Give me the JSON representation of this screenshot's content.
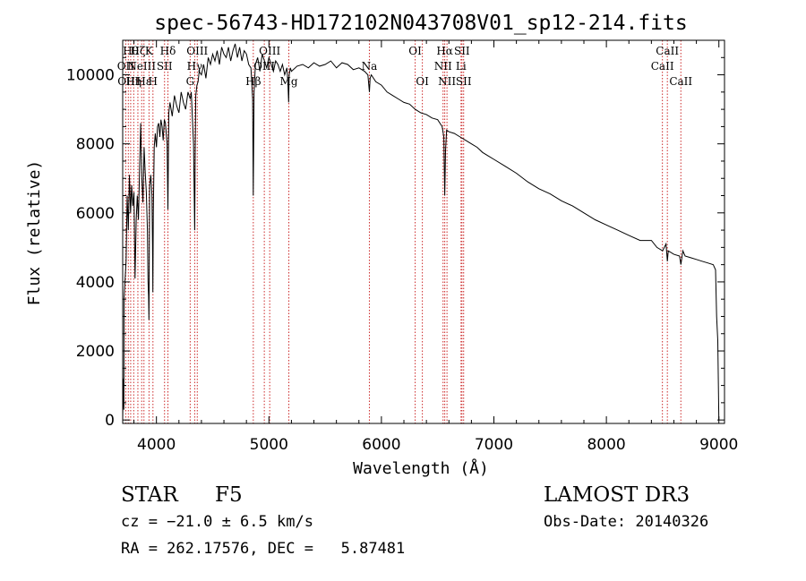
{
  "chart_data": {
    "type": "line",
    "title": "spec-56743-HD172102N043708V01_sp12-214.fits",
    "xlabel": "Wavelength (Å)",
    "ylabel": "Flux (relative)",
    "xlim": [
      3700,
      9050
    ],
    "ylim": [
      -100,
      11000
    ],
    "xticks": [
      4000,
      5000,
      6000,
      7000,
      8000,
      9000
    ],
    "yticks": [
      0,
      2000,
      4000,
      6000,
      8000,
      10000
    ],
    "grid": false,
    "series": [
      {
        "name": "spectrum",
        "x": [
          3700,
          3705,
          3710,
          3712,
          3720,
          3730,
          3740,
          3750,
          3760,
          3770,
          3780,
          3790,
          3800,
          3810,
          3820,
          3830,
          3840,
          3850,
          3860,
          3870,
          3880,
          3890,
          3900,
          3910,
          3920,
          3925,
          3930,
          3933,
          3936,
          3940,
          3950,
          3960,
          3965,
          3968,
          3972,
          3980,
          3990,
          4000,
          4010,
          4020,
          4030,
          4040,
          4050,
          4060,
          4070,
          4080,
          4095,
          4102,
          4110,
          4120,
          4140,
          4160,
          4180,
          4200,
          4220,
          4240,
          4260,
          4280,
          4300,
          4310,
          4320,
          4330,
          4340,
          4345,
          4350,
          4360,
          4370,
          4380,
          4400,
          4420,
          4440,
          4460,
          4480,
          4500,
          4520,
          4540,
          4560,
          4580,
          4600,
          4620,
          4640,
          4660,
          4680,
          4700,
          4720,
          4740,
          4760,
          4780,
          4800,
          4820,
          4840,
          4855,
          4861,
          4868,
          4880,
          4900,
          4920,
          4940,
          4960,
          4980,
          5000,
          5020,
          5040,
          5060,
          5080,
          5100,
          5120,
          5140,
          5160,
          5170,
          5175,
          5180,
          5190,
          5200,
          5250,
          5300,
          5350,
          5400,
          5450,
          5500,
          5550,
          5600,
          5650,
          5700,
          5750,
          5800,
          5850,
          5880,
          5893,
          5900,
          5910,
          5950,
          6000,
          6050,
          6100,
          6150,
          6200,
          6250,
          6300,
          6350,
          6400,
          6450,
          6500,
          6540,
          6555,
          6563,
          6570,
          6580,
          6600,
          6650,
          6700,
          6750,
          6800,
          6850,
          6900,
          6950,
          7000,
          7100,
          7200,
          7300,
          7400,
          7500,
          7600,
          7700,
          7800,
          7900,
          8000,
          8100,
          8200,
          8300,
          8400,
          8450,
          8500,
          8530,
          8542,
          8550,
          8600,
          8650,
          8662,
          8680,
          8700,
          8750,
          8800,
          8850,
          8900,
          8950,
          8970,
          8980,
          8990,
          9000
        ],
        "y": [
          0,
          1200,
          300,
          3500,
          4000,
          4600,
          6500,
          5500,
          7100,
          6000,
          6800,
          6200,
          6600,
          4100,
          5800,
          6500,
          5800,
          7200,
          8600,
          7000,
          6300,
          7900,
          7200,
          6600,
          5500,
          4000,
          3600,
          2900,
          4200,
          6800,
          7100,
          6500,
          5100,
          3700,
          6000,
          7900,
          8300,
          7900,
          8500,
          8600,
          8200,
          8700,
          8500,
          8100,
          8700,
          8600,
          8000,
          6100,
          8900,
          9200,
          8800,
          9400,
          9100,
          8900,
          9500,
          9200,
          9000,
          9500,
          9300,
          9500,
          8700,
          8000,
          5500,
          7800,
          9400,
          9700,
          9800,
          10100,
          10000,
          10300,
          9900,
          10500,
          10300,
          10600,
          10400,
          10700,
          10300,
          10800,
          10600,
          10500,
          10800,
          10400,
          10700,
          10900,
          10500,
          10800,
          10400,
          10700,
          10600,
          10300,
          10200,
          9300,
          6500,
          9500,
          10300,
          10500,
          10100,
          10600,
          10400,
          10200,
          10500,
          10300,
          10100,
          10400,
          10300,
          10100,
          10300,
          10000,
          10200,
          9700,
          9200,
          10000,
          10200,
          10100,
          10250,
          10300,
          10200,
          10350,
          10250,
          10300,
          10400,
          10200,
          10350,
          10300,
          10150,
          10200,
          10100,
          10000,
          9500,
          9900,
          10000,
          9800,
          9700,
          9500,
          9400,
          9300,
          9200,
          9150,
          9000,
          8900,
          8850,
          8750,
          8700,
          8500,
          8200,
          6500,
          7800,
          8400,
          8350,
          8300,
          8200,
          8100,
          8000,
          7900,
          7750,
          7650,
          7550,
          7350,
          7150,
          6900,
          6700,
          6550,
          6350,
          6200,
          6000,
          5800,
          5650,
          5500,
          5350,
          5200,
          5200,
          5000,
          4900,
          5100,
          4600,
          4900,
          4800,
          4750,
          4500,
          4900,
          4750,
          4700,
          4650,
          4600,
          4550,
          4500,
          4350,
          3000,
          2300,
          0
        ]
      }
    ],
    "lines": [
      {
        "x": 3727,
        "label": "OII",
        "row": 1
      },
      {
        "x": 3750,
        "label": "OIII",
        "row": 2
      },
      {
        "x": 3771,
        "label": "Hθ",
        "row": 0
      },
      {
        "x": 3798,
        "label": "Hη",
        "row": 2
      },
      {
        "x": 3835,
        "label": "Hζ",
        "row": 0
      },
      {
        "x": 3869,
        "label": "NeIII",
        "row": 1
      },
      {
        "x": 3889,
        "label": "Hε",
        "row": 2
      },
      {
        "x": 3934,
        "label": "K",
        "row": 0
      },
      {
        "x": 3969,
        "label": "H",
        "row": 2
      },
      {
        "x": 4072,
        "label": "SII",
        "row": 1
      },
      {
        "x": 4102,
        "label": "Hδ",
        "row": 0
      },
      {
        "x": 4300,
        "label": "G",
        "row": 2
      },
      {
        "x": 4340,
        "label": "Hγ",
        "row": 1
      },
      {
        "x": 4363,
        "label": "OIII",
        "row": 0
      },
      {
        "x": 4861,
        "label": "Hβ",
        "row": 2
      },
      {
        "x": 4959,
        "label": "OIII",
        "row": 1
      },
      {
        "x": 5007,
        "label": "OIII",
        "row": 0
      },
      {
        "x": 5177,
        "label": "Mg",
        "row": 2
      },
      {
        "x": 5893,
        "label": "Na",
        "row": 1
      },
      {
        "x": 6300,
        "label": "OI",
        "row": 0
      },
      {
        "x": 6364,
        "label": "OI",
        "row": 2
      },
      {
        "x": 6548,
        "label": "NII",
        "row": 1
      },
      {
        "x": 6563,
        "label": "Hα",
        "row": 0
      },
      {
        "x": 6583,
        "label": "NII",
        "row": 2
      },
      {
        "x": 6708,
        "label": "Li",
        "row": 1
      },
      {
        "x": 6716,
        "label": "SII",
        "row": 0
      },
      {
        "x": 6731,
        "label": "SII",
        "row": 2
      },
      {
        "x": 8498,
        "label": "CaII",
        "row": 1
      },
      {
        "x": 8542,
        "label": "CaII",
        "row": 0
      },
      {
        "x": 8662,
        "label": "CaII",
        "row": 2
      }
    ]
  },
  "info": {
    "object_class": "STAR",
    "subclass": "F5",
    "survey": "LAMOST DR3",
    "redshift": "cz = −21.0 ± 6.5 km/s",
    "obs_date": "Obs-Date: 20140326",
    "coords": "RA = 262.17576, DEC =   5.87481"
  },
  "colors": {
    "spectrum": "#000000",
    "line_marker": "#cc2a2a",
    "axis": "#000000"
  }
}
